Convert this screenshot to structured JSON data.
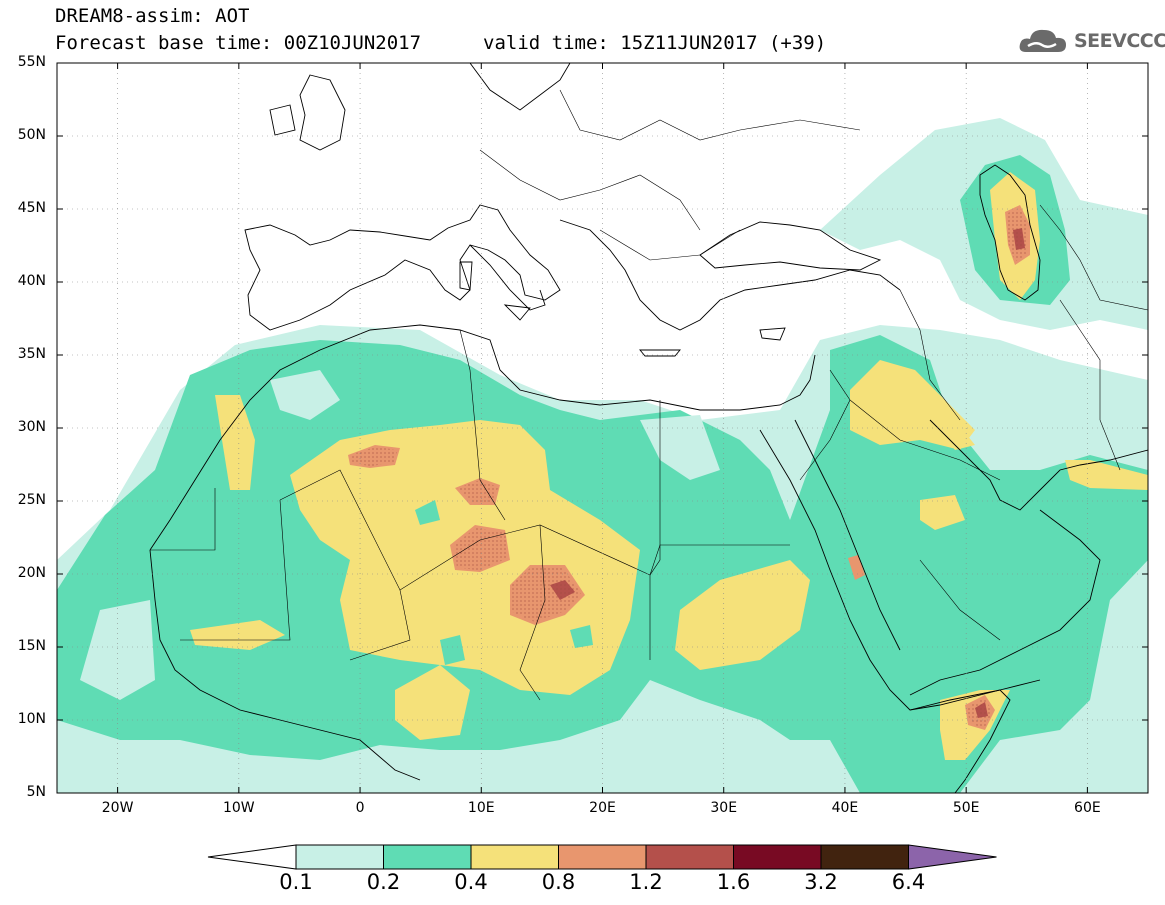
{
  "header": {
    "title": "DREAM8-assim: AOT",
    "forecast_base": "Forecast base time: 00Z10JUN2017",
    "valid_time": "valid time: 15Z11JUN2017 (+39)",
    "logo_text": "SEEVCCC",
    "logo_icon": "cloud-icon"
  },
  "map": {
    "type": "heatmap",
    "projection": "equirectangular",
    "lon_range": [
      -25,
      65
    ],
    "lat_range": [
      5,
      55
    ],
    "lat_labels": [
      "55N",
      "50N",
      "45N",
      "40N",
      "35N",
      "30N",
      "25N",
      "20N",
      "15N",
      "10N",
      "5N"
    ],
    "lon_labels": [
      "20W",
      "10W",
      "0",
      "10E",
      "20E",
      "30E",
      "40E",
      "50E",
      "60E"
    ],
    "grid": true
  },
  "legend": {
    "thresholds": [
      "0.1",
      "0.2",
      "0.4",
      "0.8",
      "1.2",
      "1.6",
      "3.2",
      "6.4"
    ],
    "colors": {
      "c0": "#ffffff",
      "c1": "#c8f0e6",
      "c2": "#5fdcb4",
      "c3": "#f5e17a",
      "c4": "#e8966e",
      "c5": "#b4504b",
      "c6": "#780a23",
      "c7": "#41230f",
      "c8": "#8c64aa"
    }
  }
}
